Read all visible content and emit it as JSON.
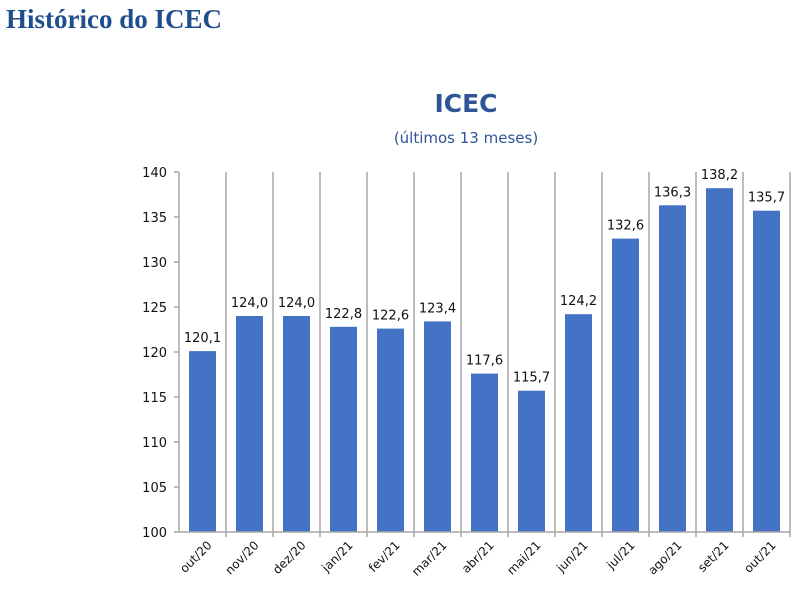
{
  "page": {
    "title": "Histórico do ICEC"
  },
  "chart_data": {
    "type": "bar",
    "title": "ICEC",
    "subtitle": "(últimos 13 meses)",
    "categories": [
      "out/20",
      "nov/20",
      "dez/20",
      "jan/21",
      "fev/21",
      "mar/21",
      "abr/21",
      "mai/21",
      "jun/21",
      "jul/21",
      "ago/21",
      "set/21",
      "out/21"
    ],
    "values": [
      120.1,
      124.0,
      124.0,
      122.8,
      122.6,
      123.4,
      117.6,
      115.7,
      124.2,
      132.6,
      136.3,
      138.2,
      135.7
    ],
    "value_labels": [
      "120,1",
      "124,0",
      "124,0",
      "122,8",
      "122,6",
      "123,4",
      "117,6",
      "115,7",
      "124,2",
      "132,6",
      "136,3",
      "138,2",
      "135,7"
    ],
    "ylim": [
      100,
      140
    ],
    "yticks": [
      100,
      105,
      110,
      115,
      120,
      125,
      130,
      135,
      140
    ],
    "xlabel": "",
    "ylabel": "",
    "bar_color": "#4472C4",
    "grid": "vertical category separators"
  }
}
